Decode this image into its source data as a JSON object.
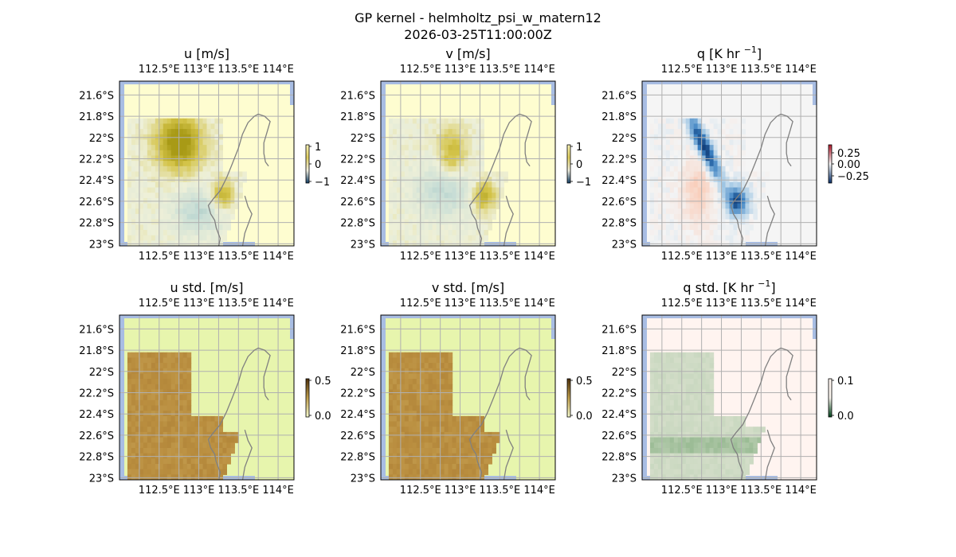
{
  "figure": {
    "title_line1": "GP kernel - helmholtz_psi_w_matern12",
    "title_line2": "2026-03-25T11:00:00Z"
  },
  "chart_data": [
    {
      "type": "heatmap",
      "id": "u",
      "title": "u [m/s]",
      "lon_ticks": [
        "112.5°E",
        "113°E",
        "113.5°E",
        "114°E"
      ],
      "lat_ticks": [
        "21.6°S",
        "21.8°S",
        "22°S",
        "22.2°S",
        "22.4°S",
        "22.6°S",
        "22.8°S",
        "23°S"
      ],
      "colorbar": {
        "ticks": [
          "1",
          "0",
          "−1"
        ],
        "range": [
          -1,
          1
        ],
        "colors": [
          "#0a2f4f",
          "#ffffff",
          "#e8dd9a",
          "#f7f4b0"
        ]
      },
      "base_color": "#fefdd0"
    },
    {
      "type": "heatmap",
      "id": "v",
      "title": "v [m/s]",
      "lon_ticks": [
        "112.5°E",
        "113°E",
        "113.5°E",
        "114°E"
      ],
      "lat_ticks": [
        "21.6°S",
        "21.8°S",
        "22°S",
        "22.2°S",
        "22.4°S",
        "22.6°S",
        "22.8°S",
        "23°S"
      ],
      "colorbar": {
        "ticks": [
          "1",
          "0",
          "−1"
        ],
        "range": [
          -1,
          1
        ],
        "colors": [
          "#0a2f4f",
          "#ffffff",
          "#e8dd9a",
          "#f7f4b0"
        ]
      },
      "base_color": "#fefdd0"
    },
    {
      "type": "heatmap",
      "id": "q",
      "title": "q [K hr",
      "title_sup": "−1",
      "title_end": "]",
      "lon_ticks": [
        "112.5°E",
        "113°E",
        "113.5°E",
        "114°E"
      ],
      "lat_ticks": [
        "21.6°S",
        "21.8°S",
        "22°S",
        "22.2°S",
        "22.4°S",
        "22.6°S",
        "22.8°S",
        "23°S"
      ],
      "colorbar": {
        "ticks": [
          "0.25",
          "0.00",
          "−0.25"
        ],
        "range": [
          -0.35,
          0.35
        ],
        "colors": [
          "#08306b",
          "#f7f7f7",
          "#b2182b"
        ]
      },
      "base_color": "#f5f5f5"
    },
    {
      "type": "heatmap",
      "id": "u_std",
      "title": "u std. [m/s]",
      "lon_ticks": [
        "112.5°E",
        "113°E",
        "113.5°E",
        "114°E"
      ],
      "lat_ticks": [
        "21.6°S",
        "21.8°S",
        "22°S",
        "22.2°S",
        "22.4°S",
        "22.6°S",
        "22.8°S",
        "23°S"
      ],
      "colorbar": {
        "ticks": [
          "0.5",
          "0.0"
        ],
        "range": [
          0,
          0.5
        ],
        "colors": [
          "#4a2c0a",
          "#b8903e",
          "#e7f5ad"
        ]
      },
      "base_color": "#e7f5ad"
    },
    {
      "type": "heatmap",
      "id": "v_std",
      "title": "v std. [m/s]",
      "lon_ticks": [
        "112.5°E",
        "113°E",
        "113.5°E",
        "114°E"
      ],
      "lat_ticks": [
        "21.6°S",
        "21.8°S",
        "22°S",
        "22.2°S",
        "22.4°S",
        "22.6°S",
        "22.8°S",
        "23°S"
      ],
      "colorbar": {
        "ticks": [
          "0.5",
          "0.0"
        ],
        "range": [
          0,
          0.5
        ],
        "colors": [
          "#4a2c0a",
          "#b8903e",
          "#e7f5ad"
        ]
      },
      "base_color": "#e7f5ad"
    },
    {
      "type": "heatmap",
      "id": "q_std",
      "title": "q std. [K hr",
      "title_sup": "−1",
      "title_end": "]",
      "lon_ticks": [
        "112.5°E",
        "113°E",
        "113.5°E",
        "114°E"
      ],
      "lat_ticks": [
        "21.6°S",
        "21.8°S",
        "22°S",
        "22.2°S",
        "22.4°S",
        "22.6°S",
        "22.8°S",
        "23°S"
      ],
      "colorbar": {
        "ticks": [
          "0.1",
          "0.0"
        ],
        "range": [
          0,
          0.1
        ],
        "colors": [
          "#1b4d2c",
          "#9cbf95",
          "#fff5f0"
        ]
      },
      "base_color": "#fff4f0"
    }
  ]
}
